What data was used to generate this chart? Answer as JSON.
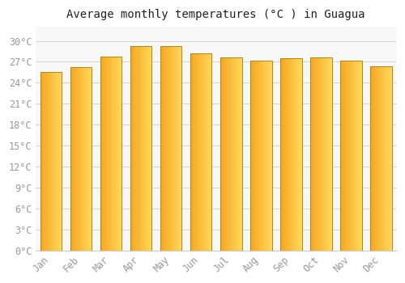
{
  "title": "Average monthly temperatures (°C ) in Guagua",
  "months": [
    "Jan",
    "Feb",
    "Mar",
    "Apr",
    "May",
    "Jun",
    "Jul",
    "Aug",
    "Sep",
    "Oct",
    "Nov",
    "Dec"
  ],
  "values": [
    25.5,
    26.2,
    27.8,
    29.2,
    29.3,
    28.2,
    27.6,
    27.2,
    27.5,
    27.6,
    27.2,
    26.3
  ],
  "bar_color_left": "#F5A623",
  "bar_color_right": "#FFD95A",
  "bar_edge_color": "#B8860B",
  "background_color": "#FFFFFF",
  "plot_bg_color": "#F8F8F8",
  "grid_color": "#CCCCCC",
  "ylim": [
    0,
    32
  ],
  "yticks": [
    0,
    3,
    6,
    9,
    12,
    15,
    18,
    21,
    24,
    27,
    30
  ],
  "title_fontsize": 10,
  "tick_fontsize": 8.5,
  "tick_font_color": "#999999",
  "bar_width": 0.72
}
